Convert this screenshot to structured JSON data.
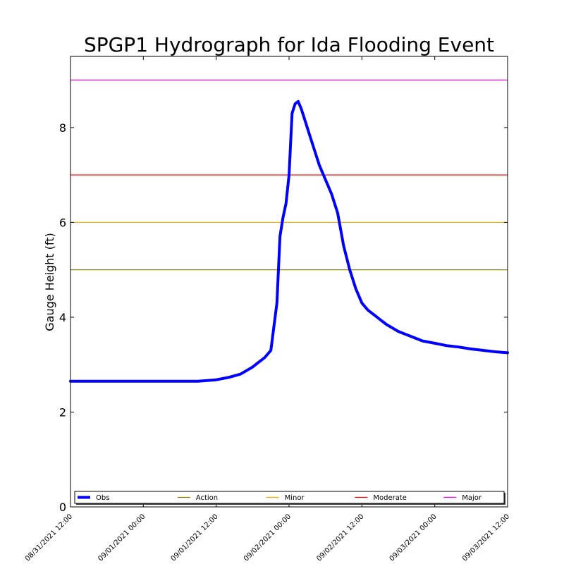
{
  "chart_data": {
    "type": "line",
    "title": "SPGP1 Hydrograph for Ida Flooding Event",
    "xlabel": "",
    "ylabel": "Gauge Height (ft)",
    "xlim": [
      "08/31/2021 12:00",
      "09/03/2021 12:00"
    ],
    "ylim": [
      0,
      9.5
    ],
    "x_ticks": [
      "08/31/2021 12:00",
      "09/01/2021 00:00",
      "09/01/2021 12:00",
      "09/02/2021 00:00",
      "09/02/2021 12:00",
      "09/03/2021 00:00",
      "09/03/2021 12:00"
    ],
    "y_ticks": [
      "0",
      "2",
      "4",
      "6",
      "8"
    ],
    "grid": false,
    "legend": {
      "placement": "bottom",
      "entries": [
        "Obs",
        "Action",
        "Minor",
        "Moderate",
        "Major"
      ]
    },
    "thresholds": [
      {
        "name": "Action",
        "value": 5,
        "color": "#808000"
      },
      {
        "name": "Minor",
        "value": 6,
        "color": "#ffa500"
      },
      {
        "name": "Moderate",
        "value": 7,
        "color": "#ff0000"
      },
      {
        "name": "Major",
        "value": 9,
        "color": "#ff00ff"
      }
    ],
    "series": [
      {
        "name": "Obs",
        "color": "#0000ff",
        "x": [
          "08/31/2021 12:00",
          "08/31/2021 18:00",
          "09/01/2021 00:00",
          "09/01/2021 06:00",
          "09/01/2021 09:00",
          "09/01/2021 12:00",
          "09/01/2021 14:00",
          "09/01/2021 16:00",
          "09/01/2021 18:00",
          "09/01/2021 19:00",
          "09/01/2021 20:00",
          "09/01/2021 21:00",
          "09/01/2021 22:00",
          "09/01/2021 22:30",
          "09/01/2021 23:00",
          "09/01/2021 23:30",
          "09/02/2021 00:00",
          "09/02/2021 00:30",
          "09/02/2021 01:00",
          "09/02/2021 01:30",
          "09/02/2021 02:00",
          "09/02/2021 02:30",
          "09/02/2021 03:00",
          "09/02/2021 04:00",
          "09/02/2021 05:00",
          "09/02/2021 06:00",
          "09/02/2021 07:00",
          "09/02/2021 08:00",
          "09/02/2021 09:00",
          "09/02/2021 10:00",
          "09/02/2021 11:00",
          "09/02/2021 12:00",
          "09/02/2021 13:00",
          "09/02/2021 14:00",
          "09/02/2021 15:00",
          "09/02/2021 16:00",
          "09/02/2021 18:00",
          "09/02/2021 20:00",
          "09/02/2021 22:00",
          "09/03/2021 00:00",
          "09/03/2021 02:00",
          "09/03/2021 04:00",
          "09/03/2021 06:00",
          "09/03/2021 08:00",
          "09/03/2021 10:00",
          "09/03/2021 12:00"
        ],
        "values": [
          2.65,
          2.65,
          2.65,
          2.65,
          2.65,
          2.68,
          2.73,
          2.8,
          2.95,
          3.05,
          3.15,
          3.3,
          4.3,
          5.7,
          6.1,
          6.4,
          7.0,
          8.3,
          8.5,
          8.55,
          8.4,
          8.2,
          8.0,
          7.6,
          7.2,
          6.9,
          6.6,
          6.2,
          5.5,
          5.0,
          4.6,
          4.3,
          4.15,
          4.05,
          3.95,
          3.85,
          3.7,
          3.6,
          3.5,
          3.45,
          3.4,
          3.37,
          3.33,
          3.3,
          3.27,
          3.25
        ]
      }
    ]
  }
}
